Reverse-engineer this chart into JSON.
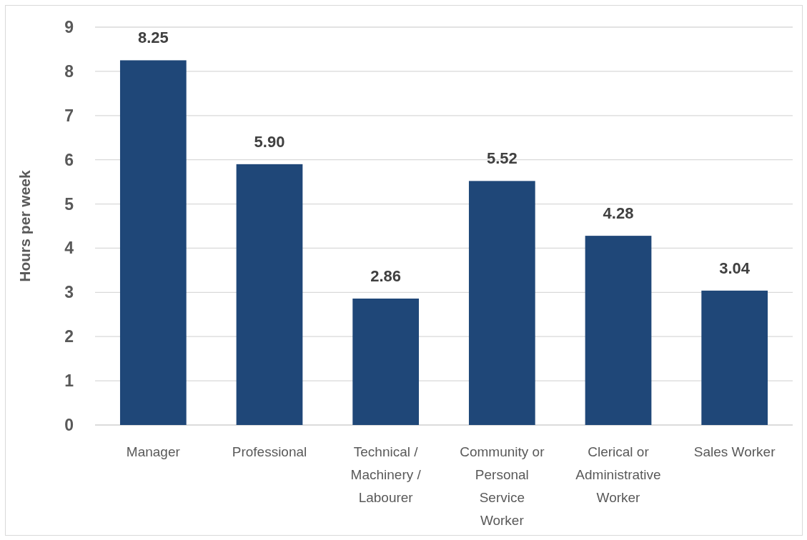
{
  "chart_data": {
    "type": "bar",
    "ylabel": "Hours per week",
    "categories": [
      "Manager",
      "Professional",
      "Technical / Machinery / Labourer",
      "Community or Personal Service Worker",
      "Clerical or Administrative Worker",
      "Sales Worker"
    ],
    "values": [
      8.25,
      5.9,
      2.86,
      5.52,
      4.28,
      3.04
    ],
    "value_labels": [
      "8.25",
      "5.90",
      "2.86",
      "5.52",
      "4.28",
      "3.04"
    ],
    "color": "#1f4778",
    "ylim": [
      0,
      9
    ],
    "yticks": [
      0,
      1,
      2,
      3,
      4,
      5,
      6,
      7,
      8,
      9
    ],
    "grid": "y"
  }
}
